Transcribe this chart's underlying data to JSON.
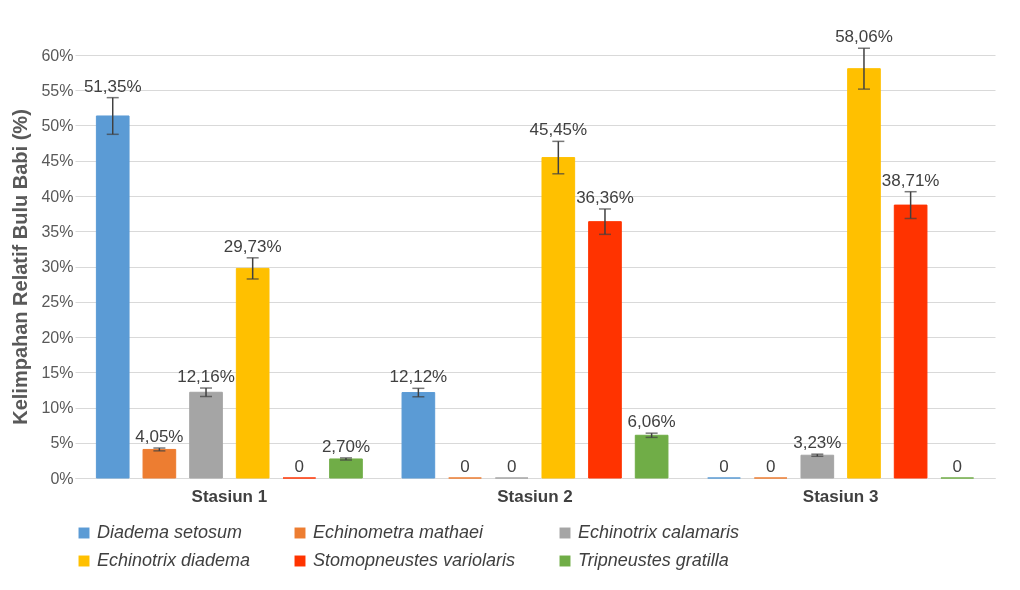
{
  "chart_data": {
    "type": "bar",
    "ylabel": "Kelimpahan Relatif Bulu Babi (%)",
    "categories": [
      "Stasiun 1",
      "Stasiun 2",
      "Stasiun 3"
    ],
    "ylim": [
      0,
      60
    ],
    "yticks": [
      {
        "value": 0,
        "label": "0%"
      },
      {
        "value": 5,
        "label": "5%"
      },
      {
        "value": 10,
        "label": "10%"
      },
      {
        "value": 15,
        "label": "15%"
      },
      {
        "value": 20,
        "label": "20%"
      },
      {
        "value": 25,
        "label": "25%"
      },
      {
        "value": 30,
        "label": "30%"
      },
      {
        "value": 35,
        "label": "35%"
      },
      {
        "value": 40,
        "label": "40%"
      },
      {
        "value": 45,
        "label": "45%"
      },
      {
        "value": 50,
        "label": "50%"
      },
      {
        "value": 55,
        "label": "55%"
      },
      {
        "value": 60,
        "label": "60%"
      }
    ],
    "grid": "y",
    "legend": "bottom",
    "series": [
      {
        "name": "Diadema setosum",
        "color": "#5b9bd5",
        "values": [
          51.35,
          12.12,
          0
        ],
        "errors": [
          2.6,
          0.6,
          null
        ],
        "value_labels": [
          "51,35%",
          "12,12%",
          "0"
        ]
      },
      {
        "name": "Echinometra mathaei",
        "color": "#ed7d31",
        "values": [
          4.05,
          0,
          0
        ],
        "errors": [
          0.2,
          null,
          null
        ],
        "value_labels": [
          "4,05%",
          "0",
          "0"
        ]
      },
      {
        "name": "Echinotrix calamaris",
        "color": "#a5a5a5",
        "values": [
          12.16,
          0,
          3.23
        ],
        "errors": [
          0.6,
          null,
          0.15
        ],
        "value_labels": [
          "12,16%",
          "0",
          "3,23%"
        ]
      },
      {
        "name": "Echinotrix diadema",
        "color": "#ffc000",
        "values": [
          29.73,
          45.45,
          58.06
        ],
        "errors": [
          1.5,
          2.3,
          2.9
        ],
        "value_labels": [
          "29,73%",
          "45,45%",
          "58,06%"
        ]
      },
      {
        "name": "Stomopneustes variolaris",
        "color": "#ff3300",
        "values": [
          0,
          36.36,
          38.71
        ],
        "errors": [
          null,
          1.8,
          1.9
        ],
        "value_labels": [
          "0",
          "36,36%",
          "38,71%"
        ]
      },
      {
        "name": "Tripneustes gratilla",
        "color": "#70ad47",
        "values": [
          2.7,
          6.06,
          0
        ],
        "errors": [
          0.15,
          0.3,
          null
        ],
        "value_labels": [
          "2,70%",
          "6,06%",
          "0"
        ]
      }
    ]
  }
}
